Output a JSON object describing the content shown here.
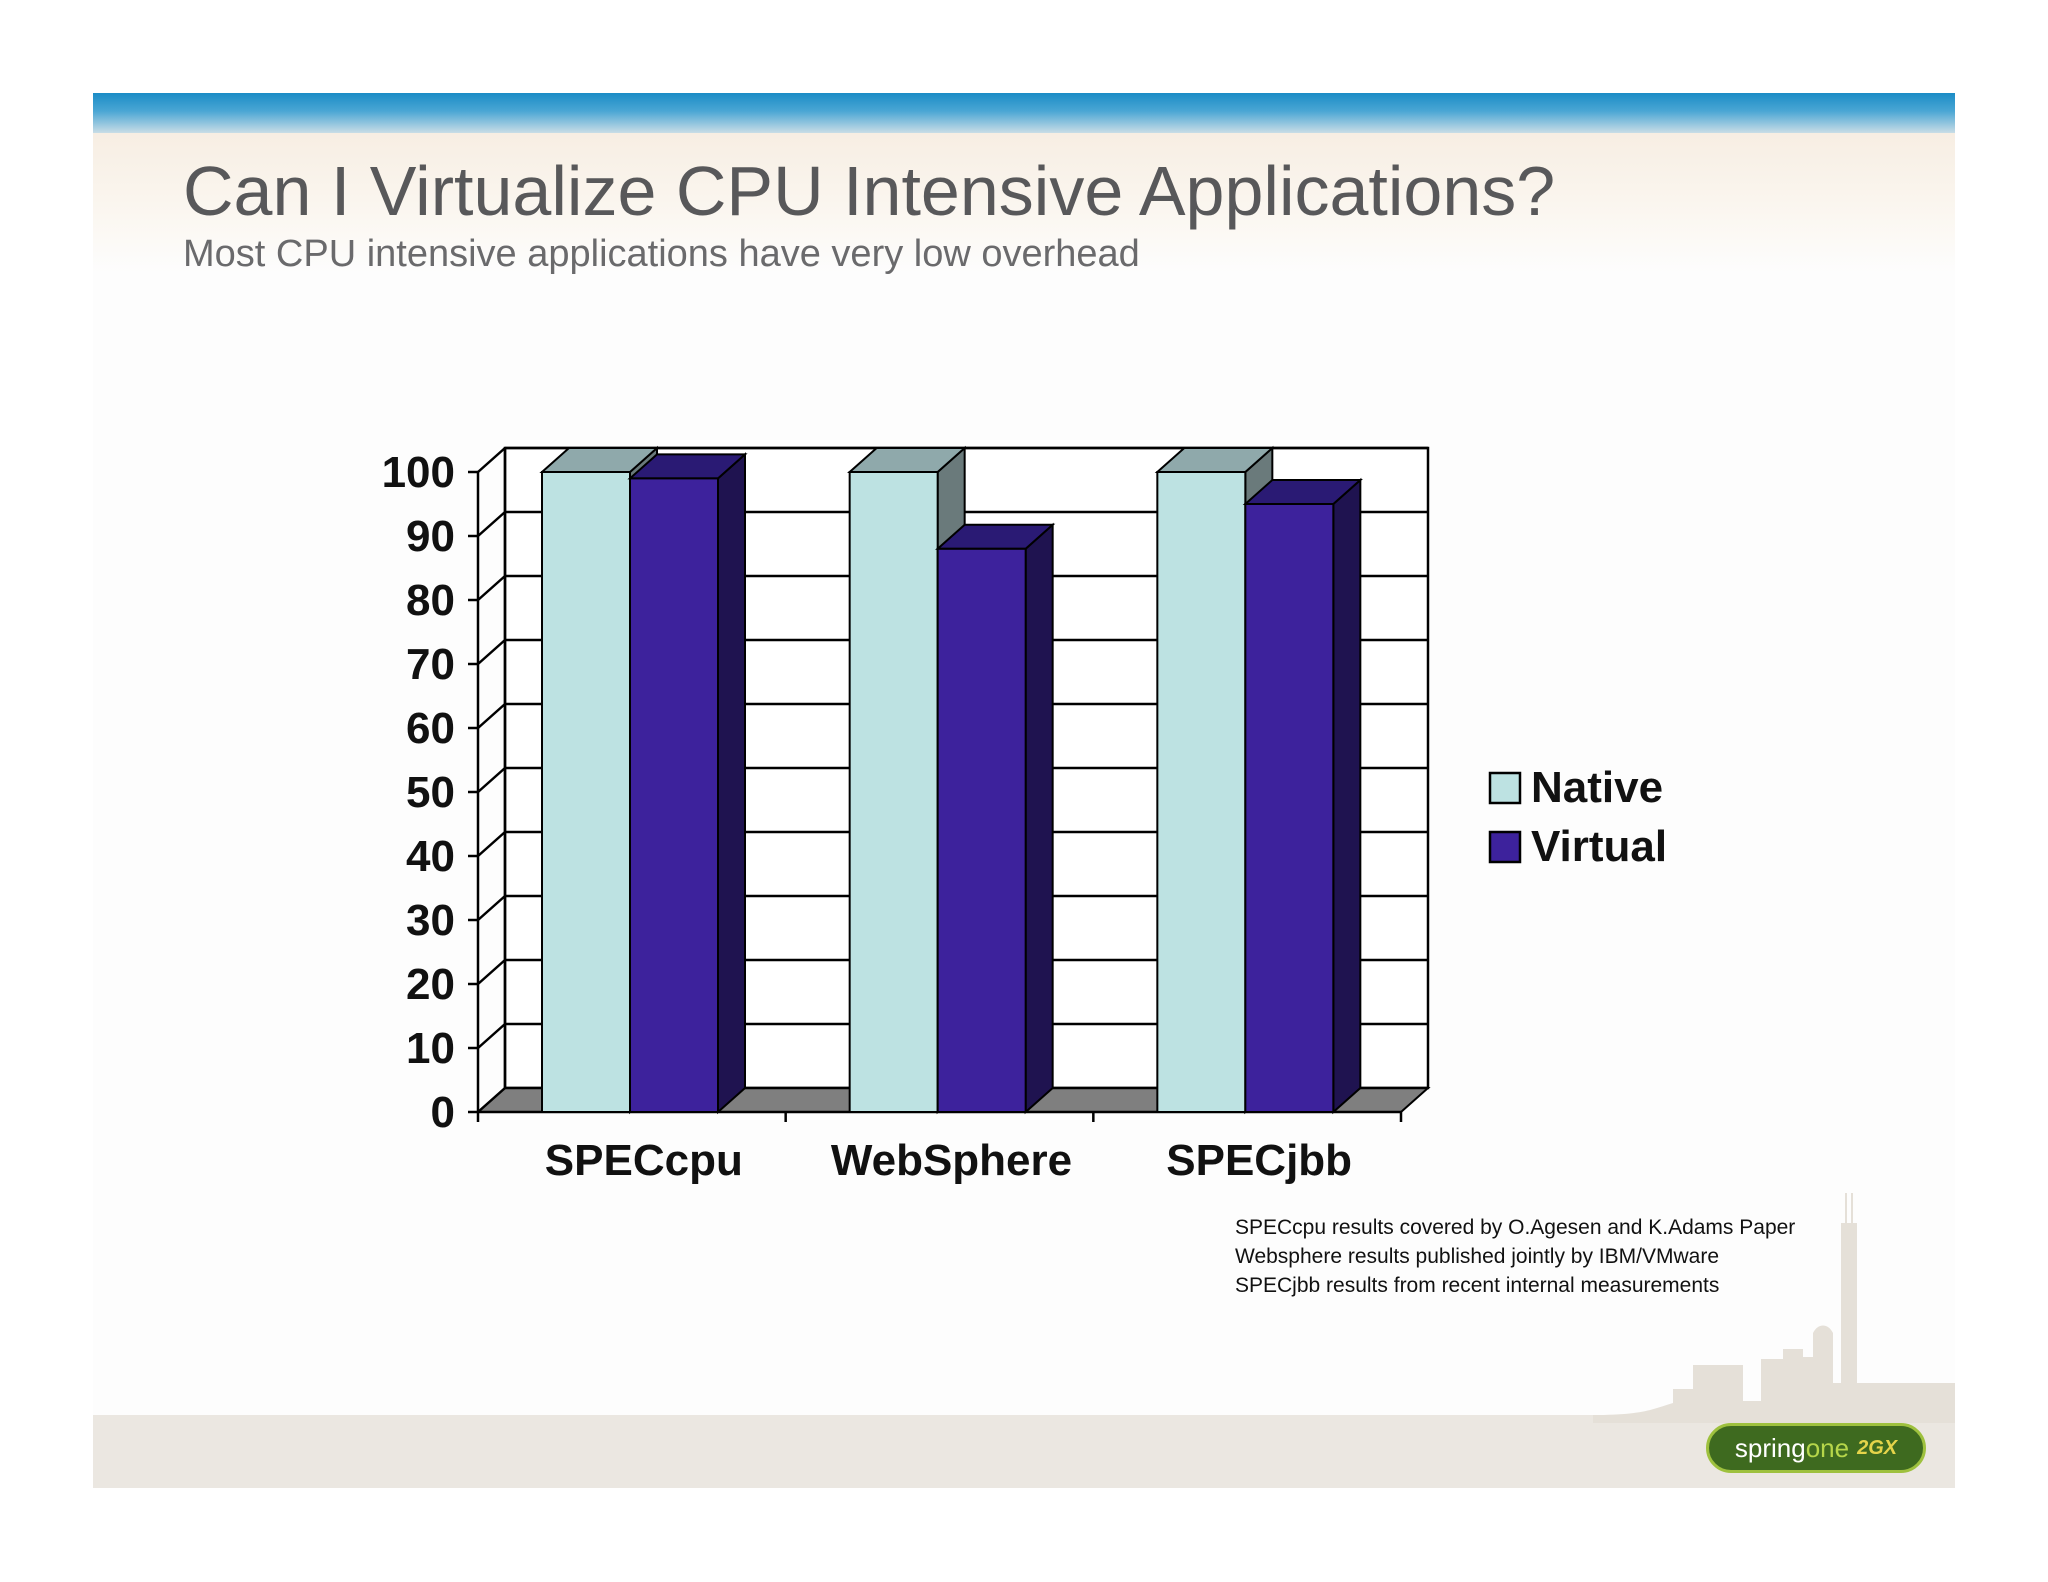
{
  "slide": {
    "title": "Can I Virtualize CPU Intensive Applications?",
    "subtitle": "Most CPU intensive applications have very low overhead"
  },
  "footnotes": [
    "SPECcpu results covered by O.Agesen and K.Adams Paper",
    "Websphere results published jointly by IBM/VMware",
    "SPECjbb results from recent internal measurements"
  ],
  "logo": {
    "text_main": "spring",
    "text_accent": "one",
    "badge": "2GX"
  },
  "colors": {
    "native": "#bde2e2",
    "virtual": "#3d229c",
    "title_text": "#58585a",
    "top_bar": "#1b8cc6"
  },
  "chart_data": {
    "type": "bar",
    "categories": [
      "SPECcpu",
      "WebSphere",
      "SPECjbb"
    ],
    "series": [
      {
        "name": "Native",
        "values": [
          100,
          100,
          100
        ]
      },
      {
        "name": "Virtual",
        "values": [
          99,
          88,
          95
        ]
      }
    ],
    "yticks": [
      0,
      10,
      20,
      30,
      40,
      50,
      60,
      70,
      80,
      90,
      100
    ],
    "ylim": [
      0,
      100
    ],
    "grid": true,
    "three_d": true,
    "legend_position": "right",
    "xlabel": "",
    "ylabel": ""
  }
}
